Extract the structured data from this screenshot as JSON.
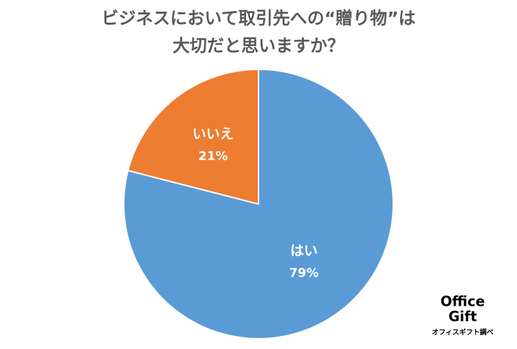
{
  "chart_data": {
    "type": "pie",
    "title": [
      "ビジネスにおいて取引先への“贈り物”は",
      "大切だと思いますか？"
    ],
    "categories": [
      "はい",
      "いいえ"
    ],
    "values": [
      79,
      21
    ],
    "value_labels": [
      "79%",
      "21%"
    ],
    "colors": [
      "#5b9bd5",
      "#ed7d31"
    ],
    "source": "オフィスギフト調べ"
  },
  "logo": [
    "Office",
    "Gift"
  ]
}
